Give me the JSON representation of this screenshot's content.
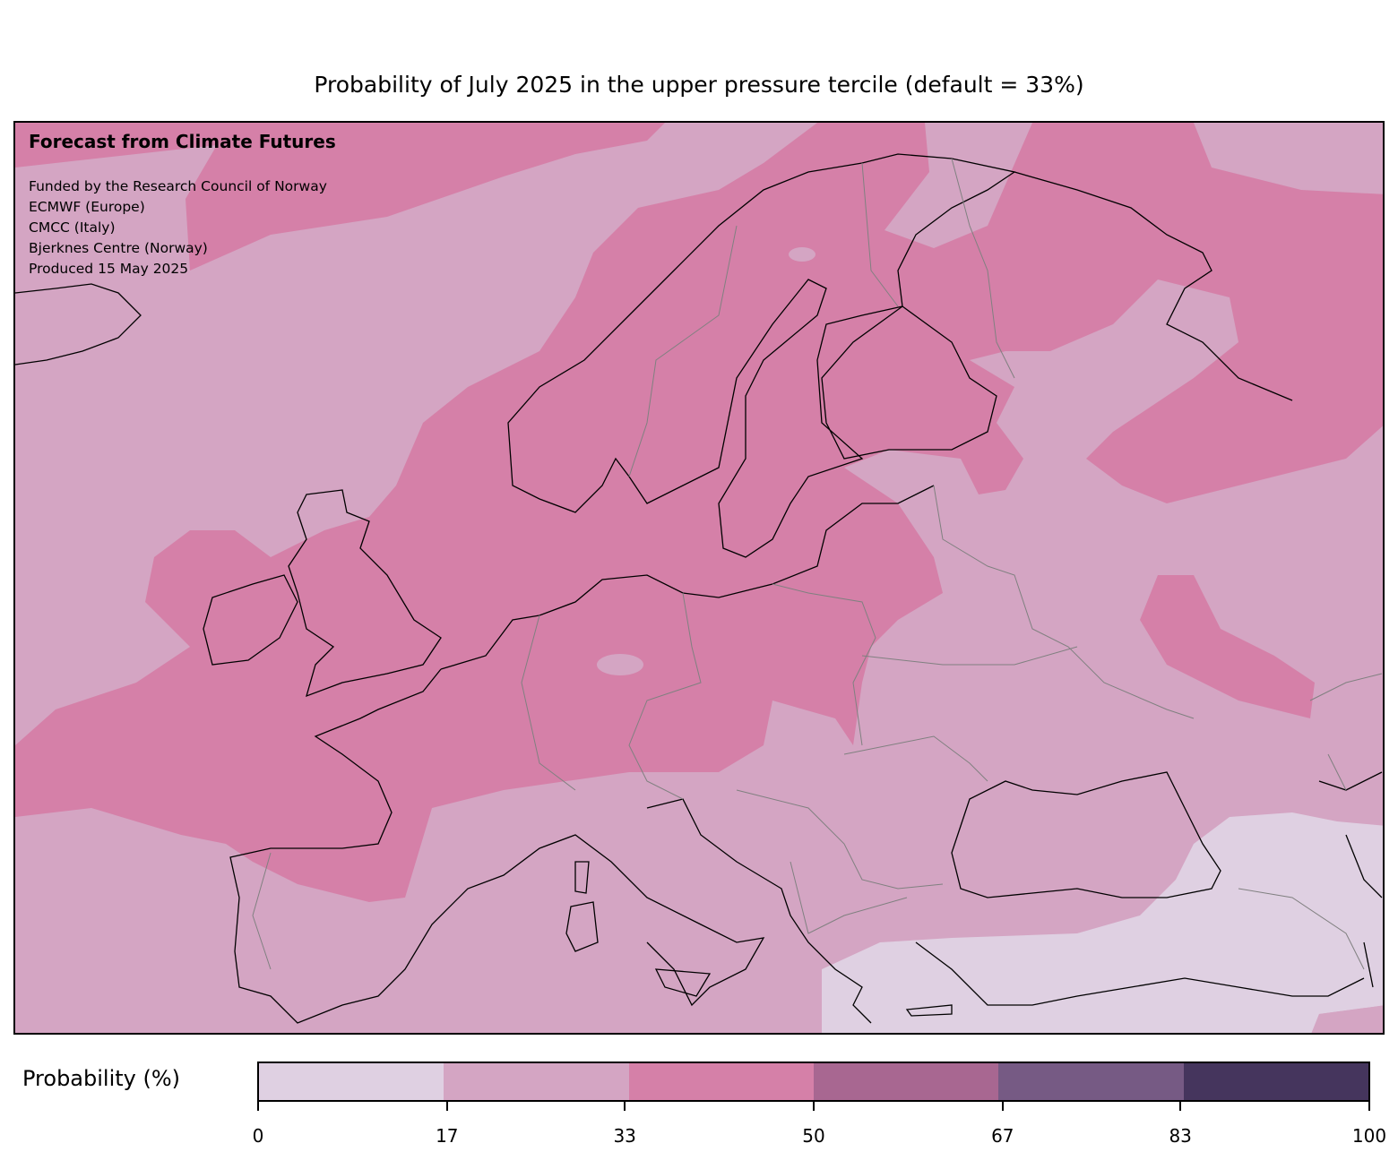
{
  "title": "Probability of July 2025 in the upper pressure tercile (default = 33%)",
  "map": {
    "heading": "Forecast from Climate Futures",
    "credits": [
      "Funded by the Research Council of Norway",
      "ECMWF (Europe)",
      "CMCC (Italy)",
      "Bjerknes Centre (Norway)",
      "Produced 15 May 2025"
    ],
    "region": "Europe",
    "colors": {
      "coast": "#000000",
      "borders": "#808080"
    }
  },
  "colorbar": {
    "label": "Probability (%)",
    "ticks": [
      "0",
      "17",
      "33",
      "50",
      "67",
      "83",
      "100"
    ],
    "bins": [
      {
        "range": [
          0,
          17
        ],
        "color": "#dfd0e2"
      },
      {
        "range": [
          17,
          33
        ],
        "color": "#d4a5c3"
      },
      {
        "range": [
          33,
          50
        ],
        "color": "#d580a8"
      },
      {
        "range": [
          50,
          67
        ],
        "color": "#a86791"
      },
      {
        "range": [
          67,
          83
        ],
        "color": "#765a84"
      },
      {
        "range": [
          83,
          100
        ],
        "color": "#45355d"
      }
    ]
  }
}
